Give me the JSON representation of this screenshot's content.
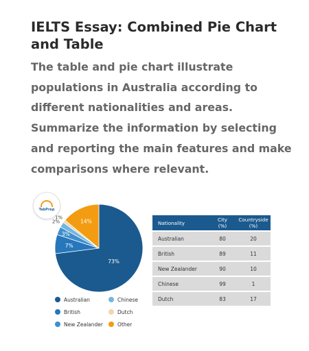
{
  "title": "IELTS Essay: Combined Pie Chart and Table",
  "prompt": "The table and pie chart illustrate populations in Australia according to different nationalities and areas. Summarize the information by selecting and reporting the main features and make comparisons where relevant.",
  "logo_text": "TabPrep",
  "colors": {
    "Australian": "#1b5a8f",
    "British": "#2677bb",
    "New Zealander": "#3f8fcc",
    "Chinese": "#74b6e2",
    "Dutch": "#f1d6ad",
    "Other": "#f39c12",
    "header_bg": "#1b5a8f",
    "row_bg": "#dadada"
  },
  "chart_data": [
    {
      "type": "pie",
      "title": "",
      "slices": [
        {
          "label": "Australian",
          "value": 73,
          "text": "73%"
        },
        {
          "label": "British",
          "value": 7,
          "text": "7%"
        },
        {
          "label": "New Zealander",
          "value": 3,
          "text": "3%"
        },
        {
          "label": "Chinese",
          "value": 2,
          "text": "2%"
        },
        {
          "label": "Dutch",
          "value": 1,
          "text": "1%"
        },
        {
          "label": "Other",
          "value": 14,
          "text": "14%"
        }
      ],
      "legend": [
        "Australian",
        "Chinese",
        "British",
        "Dutch",
        "New Zealander",
        "Other"
      ],
      "legend_placement": "bottom"
    },
    {
      "type": "table",
      "columns": [
        "Nationality",
        "City\n(%)",
        "Countryside\n(%)"
      ],
      "rows": [
        [
          "Australian",
          "80",
          "20"
        ],
        [
          "British",
          "89",
          "11"
        ],
        [
          "New Zealander",
          "90",
          "10"
        ],
        [
          "Chinese",
          "99",
          "1"
        ],
        [
          "Dutch",
          "83",
          "17"
        ]
      ]
    }
  ]
}
